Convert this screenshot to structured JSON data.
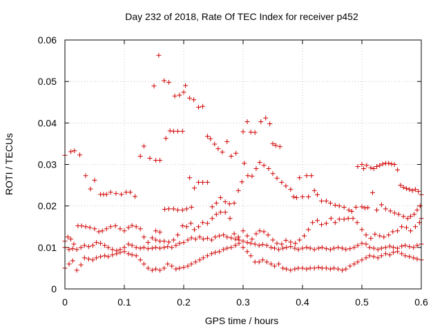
{
  "chart_data": {
    "type": "scatter",
    "title": "Day 232 of 2018, Rate Of TEC Index for receiver p452",
    "xlabel": "GPS time / hours",
    "ylabel": "ROTI / TECUs",
    "xlim": [
      0,
      0.6
    ],
    "ylim": [
      0,
      0.06
    ],
    "xticks": [
      0,
      0.1,
      0.2,
      0.3,
      0.4,
      0.5,
      0.6
    ],
    "xtick_labels": [
      "0",
      "0.1",
      "0.2",
      "0.3",
      "0.4",
      "0.5",
      "0.6"
    ],
    "yticks": [
      0,
      0.01,
      0.02,
      0.03,
      0.04,
      0.05,
      0.06
    ],
    "ytick_labels": [
      "0",
      "0.01",
      "0.02",
      "0.03",
      "0.04",
      "0.05",
      "0.06"
    ],
    "grid": true,
    "marker": "plus",
    "color": "#d00000",
    "points": [
      [
        0.0,
        0.0322
      ],
      [
        0.01,
        0.0331
      ],
      [
        0.016,
        0.0333
      ],
      [
        0.025,
        0.0323
      ],
      [
        0.035,
        0.0273
      ],
      [
        0.043,
        0.0241
      ],
      [
        0.05,
        0.0262
      ],
      [
        0.06,
        0.0228
      ],
      [
        0.065,
        0.0228
      ],
      [
        0.07,
        0.0228
      ],
      [
        0.077,
        0.0233
      ],
      [
        0.086,
        0.023
      ],
      [
        0.095,
        0.0228
      ],
      [
        0.103,
        0.0233
      ],
      [
        0.11,
        0.0233
      ],
      [
        0.118,
        0.0223
      ],
      [
        0.127,
        0.032
      ],
      [
        0.133,
        0.0344
      ],
      [
        0.143,
        0.0315
      ],
      [
        0.15,
        0.0489
      ],
      [
        0.153,
        0.031
      ],
      [
        0.16,
        0.031
      ],
      [
        0.158,
        0.0563
      ],
      [
        0.167,
        0.0502
      ],
      [
        0.17,
        0.0363
      ],
      [
        0.175,
        0.0498
      ],
      [
        0.177,
        0.0381
      ],
      [
        0.183,
        0.038
      ],
      [
        0.185,
        0.0465
      ],
      [
        0.19,
        0.038
      ],
      [
        0.193,
        0.0467
      ],
      [
        0.198,
        0.038
      ],
      [
        0.2,
        0.0474
      ],
      [
        0.203,
        0.049
      ],
      [
        0.21,
        0.046
      ],
      [
        0.217,
        0.0456
      ],
      [
        0.225,
        0.0438
      ],
      [
        0.232,
        0.044
      ],
      [
        0.24,
        0.0368
      ],
      [
        0.245,
        0.0362
      ],
      [
        0.252,
        0.0349
      ],
      [
        0.258,
        0.0338
      ],
      [
        0.265,
        0.033
      ],
      [
        0.273,
        0.0355
      ],
      [
        0.28,
        0.032
      ],
      [
        0.288,
        0.0327
      ],
      [
        0.3,
        0.0379
      ],
      [
        0.307,
        0.0403
      ],
      [
        0.313,
        0.0378
      ],
      [
        0.32,
        0.0377
      ],
      [
        0.33,
        0.0403
      ],
      [
        0.338,
        0.0412
      ],
      [
        0.345,
        0.0398
      ],
      [
        0.35,
        0.035
      ],
      [
        0.355,
        0.0346
      ],
      [
        0.362,
        0.0343
      ],
      [
        0.153,
        0.014
      ],
      [
        0.16,
        0.0137
      ],
      [
        0.168,
        0.0192
      ],
      [
        0.175,
        0.0193
      ],
      [
        0.183,
        0.0193
      ],
      [
        0.19,
        0.019
      ],
      [
        0.198,
        0.019
      ],
      [
        0.205,
        0.0193
      ],
      [
        0.21,
        0.0268
      ],
      [
        0.213,
        0.0197
      ],
      [
        0.218,
        0.0243
      ],
      [
        0.225,
        0.0257
      ],
      [
        0.232,
        0.0257
      ],
      [
        0.24,
        0.0257
      ],
      [
        0.248,
        0.0198
      ],
      [
        0.255,
        0.0207
      ],
      [
        0.262,
        0.022
      ],
      [
        0.27,
        0.021
      ],
      [
        0.277,
        0.0205
      ],
      [
        0.285,
        0.0207
      ],
      [
        0.292,
        0.0237
      ],
      [
        0.298,
        0.0258
      ],
      [
        0.302,
        0.0303
      ],
      [
        0.308,
        0.0273
      ],
      [
        0.315,
        0.0272
      ],
      [
        0.322,
        0.029
      ],
      [
        0.328,
        0.0305
      ],
      [
        0.335,
        0.0298
      ],
      [
        0.343,
        0.029
      ],
      [
        0.35,
        0.0278
      ],
      [
        0.357,
        0.0267
      ],
      [
        0.365,
        0.0257
      ],
      [
        0.372,
        0.0248
      ],
      [
        0.38,
        0.024
      ],
      [
        0.385,
        0.0222
      ],
      [
        0.39,
        0.022
      ],
      [
        0.395,
        0.0268
      ],
      [
        0.4,
        0.0222
      ],
      [
        0.407,
        0.0273
      ],
      [
        0.41,
        0.0222
      ],
      [
        0.415,
        0.0273
      ],
      [
        0.42,
        0.0237
      ],
      [
        0.425,
        0.0227
      ],
      [
        0.432,
        0.0212
      ],
      [
        0.44,
        0.0212
      ],
      [
        0.447,
        0.0207
      ],
      [
        0.455,
        0.0202
      ],
      [
        0.462,
        0.02
      ],
      [
        0.47,
        0.0197
      ],
      [
        0.478,
        0.019
      ],
      [
        0.483,
        0.0187
      ],
      [
        0.49,
        0.0197
      ],
      [
        0.493,
        0.0295
      ],
      [
        0.5,
        0.03
      ],
      [
        0.503,
        0.029
      ],
      [
        0.508,
        0.0298
      ],
      [
        0.515,
        0.0292
      ],
      [
        0.52,
        0.029
      ],
      [
        0.525,
        0.0295
      ],
      [
        0.53,
        0.0298
      ],
      [
        0.535,
        0.0301
      ],
      [
        0.54,
        0.0303
      ],
      [
        0.545,
        0.0303
      ],
      [
        0.55,
        0.0301
      ],
      [
        0.555,
        0.03
      ],
      [
        0.56,
        0.0287
      ],
      [
        0.565,
        0.025
      ],
      [
        0.57,
        0.0245
      ],
      [
        0.575,
        0.0242
      ],
      [
        0.58,
        0.024
      ],
      [
        0.585,
        0.0237
      ],
      [
        0.59,
        0.024
      ],
      [
        0.595,
        0.0235
      ],
      [
        0.6,
        0.0227
      ],
      [
        0.5,
        0.0198
      ],
      [
        0.505,
        0.0195
      ],
      [
        0.51,
        0.0196
      ],
      [
        0.518,
        0.0232
      ],
      [
        0.525,
        0.019
      ],
      [
        0.533,
        0.0203
      ],
      [
        0.54,
        0.0193
      ],
      [
        0.548,
        0.0188
      ],
      [
        0.555,
        0.0183
      ],
      [
        0.562,
        0.018
      ],
      [
        0.57,
        0.0175
      ],
      [
        0.577,
        0.017
      ],
      [
        0.582,
        0.0175
      ],
      [
        0.588,
        0.018
      ],
      [
        0.593,
        0.019
      ],
      [
        0.598,
        0.02
      ],
      [
        0.6,
        0.017
      ],
      [
        0.0,
        0.0115
      ],
      [
        0.005,
        0.0125
      ],
      [
        0.01,
        0.012
      ],
      [
        0.015,
        0.0108
      ],
      [
        0.022,
        0.0152
      ],
      [
        0.028,
        0.0152
      ],
      [
        0.035,
        0.015
      ],
      [
        0.042,
        0.0148
      ],
      [
        0.05,
        0.0145
      ],
      [
        0.057,
        0.0138
      ],
      [
        0.063,
        0.014
      ],
      [
        0.07,
        0.0145
      ],
      [
        0.077,
        0.015
      ],
      [
        0.085,
        0.0152
      ],
      [
        0.093,
        0.0145
      ],
      [
        0.1,
        0.014
      ],
      [
        0.107,
        0.0148
      ],
      [
        0.113,
        0.0153
      ],
      [
        0.12,
        0.015
      ],
      [
        0.127,
        0.0145
      ],
      [
        0.133,
        0.0125
      ],
      [
        0.14,
        0.0112
      ],
      [
        0.147,
        0.0123
      ],
      [
        0.153,
        0.0118
      ],
      [
        0.16,
        0.0115
      ],
      [
        0.167,
        0.0115
      ],
      [
        0.175,
        0.0113
      ],
      [
        0.183,
        0.0118
      ],
      [
        0.19,
        0.013
      ],
      [
        0.198,
        0.0152
      ],
      [
        0.205,
        0.015
      ],
      [
        0.212,
        0.0158
      ],
      [
        0.218,
        0.0143
      ],
      [
        0.225,
        0.015
      ],
      [
        0.232,
        0.016
      ],
      [
        0.24,
        0.0158
      ],
      [
        0.248,
        0.017
      ],
      [
        0.255,
        0.018
      ],
      [
        0.262,
        0.0185
      ],
      [
        0.27,
        0.0185
      ],
      [
        0.278,
        0.017
      ],
      [
        0.285,
        0.0133
      ],
      [
        0.292,
        0.0125
      ],
      [
        0.3,
        0.014
      ],
      [
        0.307,
        0.0128
      ],
      [
        0.315,
        0.012
      ],
      [
        0.322,
        0.0133
      ],
      [
        0.328,
        0.014
      ],
      [
        0.335,
        0.0138
      ],
      [
        0.342,
        0.013
      ],
      [
        0.35,
        0.0118
      ],
      [
        0.357,
        0.011
      ],
      [
        0.365,
        0.0108
      ],
      [
        0.372,
        0.0117
      ],
      [
        0.38,
        0.0113
      ],
      [
        0.388,
        0.011
      ],
      [
        0.395,
        0.0118
      ],
      [
        0.403,
        0.0128
      ],
      [
        0.41,
        0.0143
      ],
      [
        0.417,
        0.016
      ],
      [
        0.425,
        0.0165
      ],
      [
        0.432,
        0.0155
      ],
      [
        0.44,
        0.0158
      ],
      [
        0.448,
        0.017
      ],
      [
        0.455,
        0.016
      ],
      [
        0.462,
        0.0168
      ],
      [
        0.47,
        0.0168
      ],
      [
        0.477,
        0.017
      ],
      [
        0.485,
        0.017
      ],
      [
        0.492,
        0.016
      ],
      [
        0.5,
        0.0143
      ],
      [
        0.507,
        0.013
      ],
      [
        0.515,
        0.0122
      ],
      [
        0.522,
        0.0132
      ],
      [
        0.53,
        0.0128
      ],
      [
        0.537,
        0.0125
      ],
      [
        0.545,
        0.013
      ],
      [
        0.552,
        0.0138
      ],
      [
        0.56,
        0.014
      ],
      [
        0.567,
        0.015
      ],
      [
        0.575,
        0.0148
      ],
      [
        0.582,
        0.014
      ],
      [
        0.59,
        0.015
      ],
      [
        0.597,
        0.016
      ],
      [
        0.0,
        0.01
      ],
      [
        0.007,
        0.0095
      ],
      [
        0.013,
        0.0097
      ],
      [
        0.02,
        0.0095
      ],
      [
        0.027,
        0.01
      ],
      [
        0.033,
        0.0105
      ],
      [
        0.04,
        0.0102
      ],
      [
        0.047,
        0.0105
      ],
      [
        0.053,
        0.0112
      ],
      [
        0.06,
        0.011
      ],
      [
        0.067,
        0.0105
      ],
      [
        0.073,
        0.01
      ],
      [
        0.08,
        0.0095
      ],
      [
        0.087,
        0.0092
      ],
      [
        0.093,
        0.0095
      ],
      [
        0.1,
        0.01
      ],
      [
        0.107,
        0.0108
      ],
      [
        0.113,
        0.0105
      ],
      [
        0.12,
        0.01
      ],
      [
        0.127,
        0.0098
      ],
      [
        0.133,
        0.01
      ],
      [
        0.14,
        0.0097
      ],
      [
        0.147,
        0.0098
      ],
      [
        0.153,
        0.01
      ],
      [
        0.16,
        0.0098
      ],
      [
        0.167,
        0.01
      ],
      [
        0.173,
        0.0102
      ],
      [
        0.18,
        0.01
      ],
      [
        0.187,
        0.0105
      ],
      [
        0.193,
        0.011
      ],
      [
        0.2,
        0.0112
      ],
      [
        0.207,
        0.0118
      ],
      [
        0.213,
        0.0123
      ],
      [
        0.22,
        0.012
      ],
      [
        0.227,
        0.0125
      ],
      [
        0.233,
        0.012
      ],
      [
        0.24,
        0.0122
      ],
      [
        0.247,
        0.0118
      ],
      [
        0.253,
        0.0125
      ],
      [
        0.26,
        0.0128
      ],
      [
        0.267,
        0.013
      ],
      [
        0.273,
        0.0125
      ],
      [
        0.28,
        0.0123
      ],
      [
        0.287,
        0.012
      ],
      [
        0.293,
        0.0118
      ],
      [
        0.3,
        0.0115
      ],
      [
        0.307,
        0.0112
      ],
      [
        0.313,
        0.011
      ],
      [
        0.32,
        0.0108
      ],
      [
        0.327,
        0.0105
      ],
      [
        0.333,
        0.0107
      ],
      [
        0.34,
        0.0105
      ],
      [
        0.347,
        0.01
      ],
      [
        0.353,
        0.0098
      ],
      [
        0.36,
        0.0095
      ],
      [
        0.367,
        0.0098
      ],
      [
        0.373,
        0.01
      ],
      [
        0.38,
        0.0102
      ],
      [
        0.387,
        0.0098
      ],
      [
        0.393,
        0.0095
      ],
      [
        0.4,
        0.0098
      ],
      [
        0.407,
        0.01
      ],
      [
        0.413,
        0.0098
      ],
      [
        0.42,
        0.0095
      ],
      [
        0.427,
        0.0098
      ],
      [
        0.433,
        0.01
      ],
      [
        0.44,
        0.0097
      ],
      [
        0.447,
        0.0095
      ],
      [
        0.453,
        0.0098
      ],
      [
        0.46,
        0.01
      ],
      [
        0.467,
        0.0098
      ],
      [
        0.473,
        0.0095
      ],
      [
        0.48,
        0.0097
      ],
      [
        0.487,
        0.01
      ],
      [
        0.493,
        0.0105
      ],
      [
        0.5,
        0.011
      ],
      [
        0.507,
        0.0108
      ],
      [
        0.513,
        0.01
      ],
      [
        0.52,
        0.0098
      ],
      [
        0.527,
        0.0095
      ],
      [
        0.533,
        0.0098
      ],
      [
        0.54,
        0.01
      ],
      [
        0.547,
        0.0103
      ],
      [
        0.553,
        0.01
      ],
      [
        0.56,
        0.0098
      ],
      [
        0.567,
        0.0103
      ],
      [
        0.573,
        0.0105
      ],
      [
        0.58,
        0.0102
      ],
      [
        0.587,
        0.01
      ],
      [
        0.593,
        0.0105
      ],
      [
        0.6,
        0.0108
      ],
      [
        0.0,
        0.005
      ],
      [
        0.007,
        0.006
      ],
      [
        0.013,
        0.0068
      ],
      [
        0.02,
        0.0045
      ],
      [
        0.027,
        0.0058
      ],
      [
        0.033,
        0.0075
      ],
      [
        0.04,
        0.0072
      ],
      [
        0.047,
        0.007
      ],
      [
        0.053,
        0.0075
      ],
      [
        0.06,
        0.0078
      ],
      [
        0.067,
        0.008
      ],
      [
        0.073,
        0.0078
      ],
      [
        0.08,
        0.0082
      ],
      [
        0.087,
        0.0085
      ],
      [
        0.093,
        0.0088
      ],
      [
        0.1,
        0.009
      ],
      [
        0.107,
        0.0085
      ],
      [
        0.113,
        0.0082
      ],
      [
        0.12,
        0.008
      ],
      [
        0.127,
        0.007
      ],
      [
        0.133,
        0.006
      ],
      [
        0.14,
        0.005
      ],
      [
        0.147,
        0.0045
      ],
      [
        0.153,
        0.0048
      ],
      [
        0.16,
        0.0045
      ],
      [
        0.167,
        0.005
      ],
      [
        0.173,
        0.006
      ],
      [
        0.18,
        0.0055
      ],
      [
        0.187,
        0.0048
      ],
      [
        0.193,
        0.005
      ],
      [
        0.2,
        0.0052
      ],
      [
        0.207,
        0.0055
      ],
      [
        0.213,
        0.006
      ],
      [
        0.22,
        0.0065
      ],
      [
        0.227,
        0.007
      ],
      [
        0.233,
        0.0075
      ],
      [
        0.24,
        0.008
      ],
      [
        0.247,
        0.0085
      ],
      [
        0.253,
        0.0088
      ],
      [
        0.26,
        0.009
      ],
      [
        0.267,
        0.0095
      ],
      [
        0.273,
        0.0098
      ],
      [
        0.28,
        0.01
      ],
      [
        0.287,
        0.0105
      ],
      [
        0.293,
        0.011
      ],
      [
        0.3,
        0.01
      ],
      [
        0.307,
        0.009
      ],
      [
        0.313,
        0.008
      ],
      [
        0.32,
        0.0065
      ],
      [
        0.327,
        0.0065
      ],
      [
        0.333,
        0.007
      ],
      [
        0.34,
        0.0065
      ],
      [
        0.347,
        0.006
      ],
      [
        0.353,
        0.0055
      ],
      [
        0.36,
        0.006
      ],
      [
        0.367,
        0.005
      ],
      [
        0.373,
        0.0048
      ],
      [
        0.38,
        0.0045
      ],
      [
        0.387,
        0.0048
      ],
      [
        0.393,
        0.005
      ],
      [
        0.4,
        0.005
      ],
      [
        0.407,
        0.0048
      ],
      [
        0.413,
        0.005
      ],
      [
        0.42,
        0.005
      ],
      [
        0.427,
        0.0052
      ],
      [
        0.433,
        0.005
      ],
      [
        0.44,
        0.005
      ],
      [
        0.447,
        0.0048
      ],
      [
        0.453,
        0.005
      ],
      [
        0.46,
        0.0048
      ],
      [
        0.467,
        0.0045
      ],
      [
        0.473,
        0.0048
      ],
      [
        0.48,
        0.0055
      ],
      [
        0.487,
        0.006
      ],
      [
        0.493,
        0.0065
      ],
      [
        0.5,
        0.007
      ],
      [
        0.507,
        0.0075
      ],
      [
        0.513,
        0.008
      ],
      [
        0.52,
        0.0078
      ],
      [
        0.527,
        0.0075
      ],
      [
        0.533,
        0.008
      ],
      [
        0.54,
        0.0085
      ],
      [
        0.547,
        0.0082
      ],
      [
        0.553,
        0.0088
      ],
      [
        0.56,
        0.009
      ],
      [
        0.567,
        0.0085
      ],
      [
        0.573,
        0.008
      ],
      [
        0.58,
        0.0078
      ],
      [
        0.587,
        0.0075
      ],
      [
        0.593,
        0.0072
      ],
      [
        0.6,
        0.007
      ]
    ]
  }
}
